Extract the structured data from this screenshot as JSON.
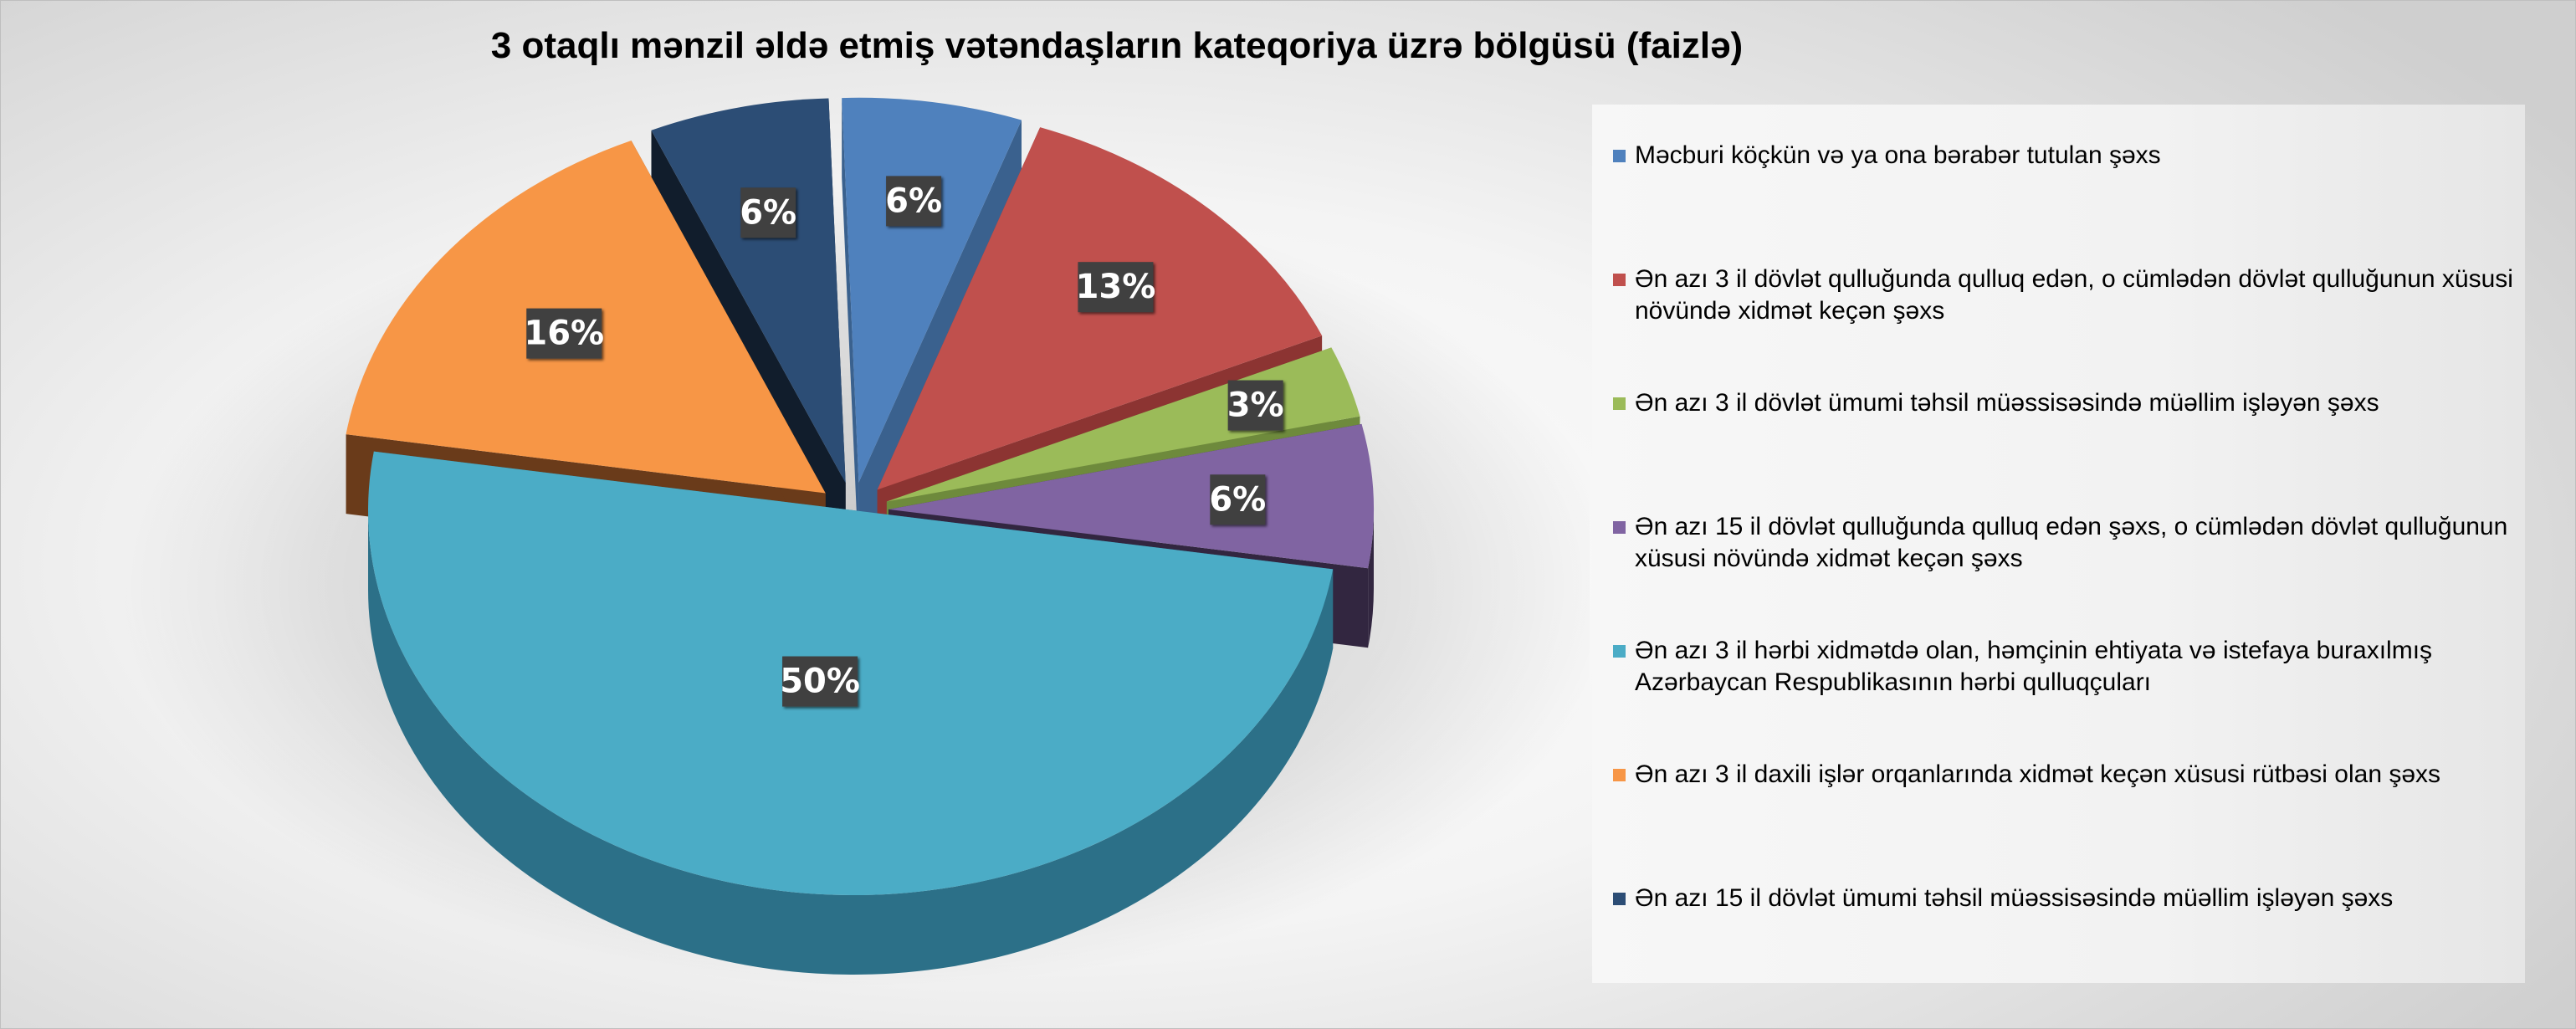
{
  "chart_data": {
    "type": "pie",
    "style": "3d-exploded",
    "title": "3 otaqlı mənzil əldə etmiş vətəndaşların kateqoriya üzrə bölgüsü (faizlə)",
    "legend_position": "right",
    "slices": [
      {
        "name": "Məcburi köçkün və ya ona bərabər tutulan şəxs",
        "value": 6,
        "label": "6%",
        "color": "#4f81bd",
        "side_color": "#3a618e"
      },
      {
        "name": "Ən azı 3 il dövlət qulluğunda qulluq edən, o cümlədən dövlət qulluğunun xüsusi növündə xidmət keçən şəxs",
        "value": 13,
        "label": "13%",
        "color": "#c0504d",
        "side_color": "#8c3432"
      },
      {
        "name": "Ən azı 3 il dövlət ümumi təhsil müəssisəsində müəllim işləyən şəxs",
        "value": 3,
        "label": "3%",
        "color": "#9bbb59",
        "side_color": "#6e8a3c"
      },
      {
        "name": "Ən azı 15 il dövlət qulluğunda qulluq edən şəxs, o cümlədən dövlət qulluğunun xüsusi növündə xidmət keçən şəxs",
        "value": 6,
        "label": "6%",
        "color": "#8064a2",
        "side_color": "#322640"
      },
      {
        "name": "Ən azı 3 il hərbi xidmətdə olan, həmçinin ehtiyata və istefaya buraxılmış Azərbaycan Respublikasının hərbi qulluqçuları",
        "value": 50,
        "label": "50%",
        "color": "#4bacc6",
        "side_color": "#2c7088"
      },
      {
        "name": "Ən azı 3 il daxili işlər orqanlarında xidmət keçən xüsusi rütbəsi olan şəxs",
        "value": 16,
        "label": "16%",
        "color": "#f79646",
        "side_color": "#6a3b1a"
      },
      {
        "name": "Ən azı 15 il dövlət ümumi təhsil müəssisəsində müəllim işləyən şəxs",
        "value": 6,
        "label": "6%",
        "color": "#2c4d75",
        "side_color": "#111d2c"
      }
    ]
  }
}
